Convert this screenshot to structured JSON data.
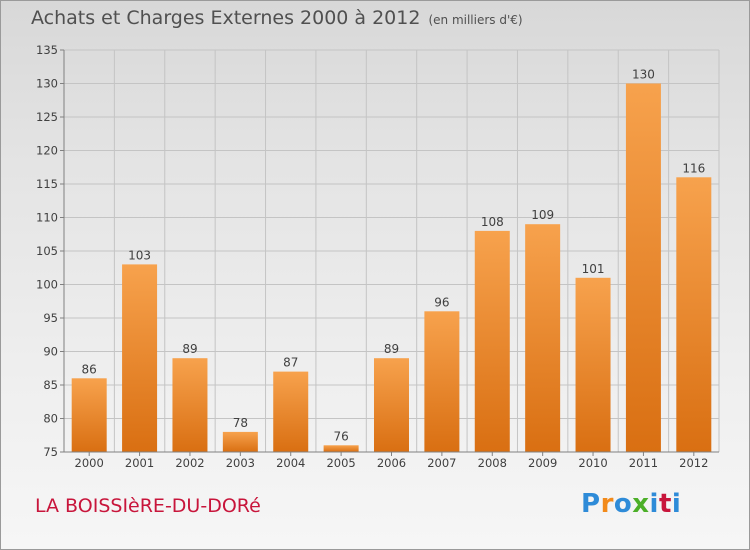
{
  "title": "Achats et Charges Externes 2000 à 2012",
  "unit": "(en milliers d'€)",
  "location": "LA BOISSIèRE-DU-DORé",
  "brand": {
    "letters": [
      "P",
      "r",
      "o",
      "x",
      "i",
      "t",
      "i"
    ],
    "colors": [
      "#2e8bd8",
      "#f28a1a",
      "#2e8bd8",
      "#4caf28",
      "#2e8bd8",
      "#c8153b",
      "#2e8bd8"
    ]
  },
  "chart_data": {
    "type": "bar",
    "title": "Achats et Charges Externes 2000 à 2012",
    "subtitle": "(en milliers d'€)",
    "xlabel": "",
    "ylabel": "",
    "categories": [
      "2000",
      "2001",
      "2002",
      "2003",
      "2004",
      "2005",
      "2006",
      "2007",
      "2008",
      "2009",
      "2010",
      "2011",
      "2012"
    ],
    "values": [
      86,
      103,
      89,
      78,
      87,
      76,
      89,
      96,
      108,
      109,
      101,
      130,
      116
    ],
    "ylim": [
      75,
      135
    ],
    "yticks": [
      75,
      80,
      85,
      90,
      95,
      100,
      105,
      110,
      115,
      120,
      125,
      130,
      135
    ],
    "grid": true,
    "bar_color": "#f0821e"
  }
}
